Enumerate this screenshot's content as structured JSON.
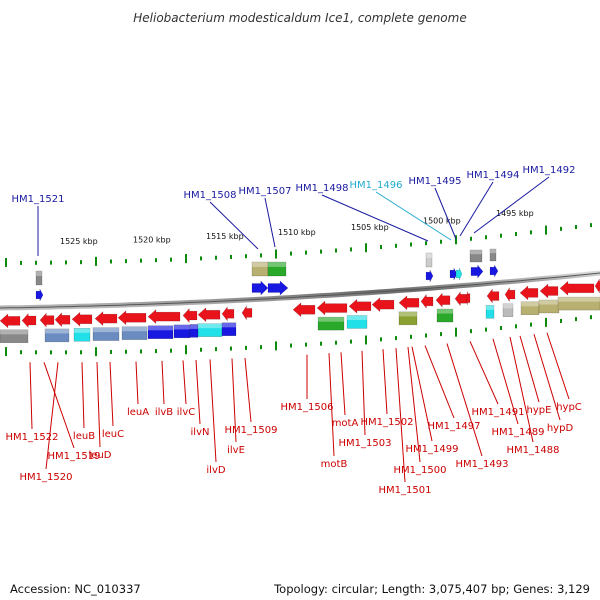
{
  "title": "Heliobacterium modesticaldum Ice1, complete genome",
  "footer": {
    "accession": "Accession: NC_010337",
    "topology": "Topology: circular; Length: 3,075,407 bp; Genes: 3,129"
  },
  "colors": {
    "red": "#e8131b",
    "blue": "#1818e0",
    "cyan": "#22e0e8",
    "green": "#2aa82a",
    "olive": "#b8b070",
    "gray": "#888888",
    "axis_green": "#0b8a0b",
    "label_red": "#cc0000",
    "label_blue": "#1a1aa0",
    "label_cyan": "#22aacc"
  },
  "kbp_ticks": [
    "1525 kbp",
    "1520 kbp",
    "1515 kbp",
    "1510 kbp",
    "1505 kbp",
    "1500 kbp",
    "1495 kbp"
  ],
  "top_labels": [
    {
      "text": "HM1_1521",
      "color": "blue"
    },
    {
      "text": "HM1_1508",
      "color": "blue"
    },
    {
      "text": "HM1_1507",
      "color": "blue"
    },
    {
      "text": "HM1_1498",
      "color": "blue"
    },
    {
      "text": "HM1_1496",
      "color": "cyan"
    },
    {
      "text": "HM1_1495",
      "color": "blue"
    },
    {
      "text": "HM1_1494",
      "color": "blue"
    },
    {
      "text": "HM1_1492",
      "color": "blue"
    }
  ],
  "bottom_labels": [
    "HM1_1522",
    "HM1_1519",
    "HM1_1520",
    "leuB",
    "leuD",
    "leuC",
    "leuA",
    "ilvB",
    "ilvC",
    "ilvN",
    "ilvD",
    "ilvE",
    "HM1_1509",
    "HM1_1506",
    "motB",
    "motA",
    "HM1_1503",
    "HM1_1502",
    "HM1_1500",
    "HM1_1501",
    "HM1_1499",
    "HM1_1497",
    "HM1_1493",
    "HM1_1491",
    "HM1_1489",
    "HM1_1488",
    "hypE",
    "hypD",
    "hypC"
  ]
}
